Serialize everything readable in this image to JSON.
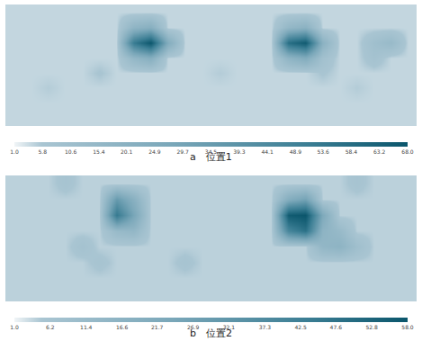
{
  "chart_data": [
    {
      "type": "heatmap",
      "title": "a　位置1",
      "tick_labels": false,
      "grid": false,
      "cells": [
        [
          4,
          4,
          4,
          4,
          4,
          4,
          4,
          4,
          4,
          4,
          4,
          4,
          4,
          4,
          4,
          4,
          4,
          4,
          4,
          4,
          4,
          4,
          4,
          4
        ],
        [
          4,
          4,
          4,
          4,
          4,
          4,
          4,
          18,
          22,
          4,
          4,
          4,
          4,
          4,
          4,
          4,
          16,
          20,
          4,
          4,
          4,
          4,
          4,
          4
        ],
        [
          4,
          4,
          4,
          4,
          4,
          4,
          4,
          52,
          68,
          24,
          4,
          4,
          4,
          4,
          4,
          4,
          58,
          66,
          20,
          4,
          4,
          10,
          14,
          4
        ],
        [
          4,
          4,
          4,
          4,
          4,
          4,
          4,
          16,
          22,
          4,
          4,
          4,
          4,
          4,
          4,
          4,
          18,
          24,
          9,
          4,
          4,
          8,
          4,
          4
        ],
        [
          4,
          4,
          4,
          4,
          4,
          6,
          4,
          4,
          4,
          4,
          4,
          4,
          5,
          4,
          4,
          4,
          4,
          4,
          6,
          4,
          4,
          4,
          4,
          4
        ],
        [
          4,
          4,
          5,
          4,
          4,
          4,
          4,
          4,
          4,
          4,
          4,
          4,
          4,
          4,
          4,
          4,
          4,
          4,
          4,
          4,
          5,
          4,
          4,
          4
        ],
        [
          4,
          4,
          4,
          4,
          4,
          4,
          4,
          4,
          4,
          4,
          4,
          4,
          4,
          4,
          4,
          4,
          4,
          4,
          4,
          4,
          4,
          4,
          4,
          4
        ],
        [
          4,
          4,
          4,
          4,
          4,
          4,
          4,
          4,
          4,
          4,
          4,
          4,
          4,
          4,
          4,
          4,
          4,
          4,
          4,
          4,
          4,
          4,
          4,
          4
        ]
      ],
      "colorbar": {
        "range": [
          1.0,
          68.0
        ],
        "ticks": [
          {
            "value": 1.0,
            "label": "1.0"
          },
          5.8,
          10.6,
          15.4,
          20.1,
          24.9,
          29.7,
          34.5,
          39.3,
          44.1,
          48.9,
          53.6,
          58.4,
          63.2,
          {
            "value": 68.0,
            "label": "68.0"
          }
        ]
      }
    },
    {
      "type": "heatmap",
      "title": "b　位置2",
      "tick_labels": false,
      "grid": false,
      "cells": [
        [
          4,
          4,
          4,
          6,
          4,
          4,
          4,
          4,
          4,
          4,
          4,
          4,
          4,
          4,
          4,
          4,
          4,
          4,
          4,
          4,
          6,
          4,
          4,
          4
        ],
        [
          4,
          4,
          4,
          4,
          4,
          4,
          30,
          18,
          4,
          4,
          4,
          4,
          4,
          4,
          4,
          4,
          20,
          26,
          4,
          4,
          4,
          4,
          4,
          4
        ],
        [
          4,
          4,
          4,
          4,
          4,
          4,
          45,
          24,
          4,
          4,
          4,
          4,
          4,
          4,
          4,
          4,
          56,
          58,
          22,
          4,
          4,
          4,
          4,
          4
        ],
        [
          4,
          4,
          4,
          4,
          4,
          4,
          12,
          14,
          4,
          4,
          4,
          4,
          4,
          4,
          4,
          4,
          40,
          48,
          16,
          12,
          4,
          4,
          4,
          4
        ],
        [
          4,
          4,
          4,
          4,
          7,
          4,
          4,
          4,
          4,
          4,
          4,
          4,
          4,
          4,
          4,
          4,
          4,
          4,
          14,
          16,
          9,
          4,
          4,
          4
        ],
        [
          4,
          4,
          4,
          4,
          4,
          6,
          4,
          4,
          4,
          4,
          6,
          4,
          4,
          4,
          4,
          4,
          4,
          4,
          4,
          4,
          4,
          4,
          4,
          4
        ],
        [
          4,
          4,
          4,
          4,
          4,
          4,
          4,
          4,
          4,
          4,
          4,
          4,
          4,
          4,
          4,
          4,
          4,
          4,
          4,
          4,
          4,
          4,
          4,
          4
        ],
        [
          4,
          4,
          4,
          4,
          4,
          4,
          4,
          4,
          4,
          4,
          4,
          4,
          4,
          4,
          4,
          4,
          4,
          4,
          4,
          4,
          4,
          4,
          4,
          4
        ]
      ],
      "colorbar": {
        "range": [
          1.0,
          58.0
        ],
        "ticks": [
          {
            "value": 1.0,
            "label": "1.0"
          },
          6.2,
          11.4,
          16.6,
          21.7,
          26.9,
          32.1,
          37.3,
          42.5,
          47.6,
          52.8,
          {
            "value": 58.0,
            "label": "58.0"
          }
        ]
      }
    }
  ]
}
